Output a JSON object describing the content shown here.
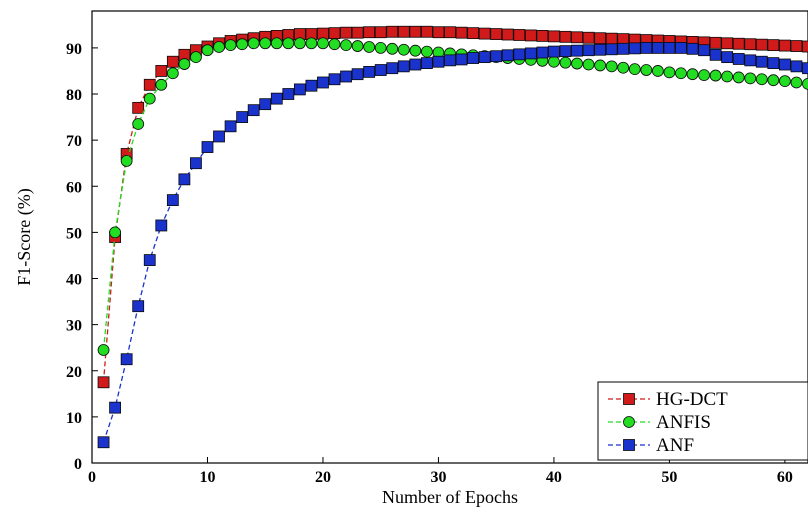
{
  "chart_data": {
    "type": "line",
    "title": "",
    "xlabel": "Number of Epochs",
    "ylabel": "F1-Score (%)",
    "xlim": [
      0,
      62
    ],
    "ylim": [
      0,
      98
    ],
    "xticks": [
      0,
      10,
      20,
      30,
      40,
      50,
      60
    ],
    "yticks": [
      0,
      10,
      20,
      30,
      40,
      50,
      60,
      70,
      80,
      90
    ],
    "grid": false,
    "legend_position": "bottom-right",
    "series": [
      {
        "name": "HG-DCT",
        "color": "#d11a1a",
        "marker": "square",
        "line": "dashed",
        "x": [
          1,
          2,
          3,
          4,
          5,
          6,
          7,
          8,
          9,
          10,
          11,
          12,
          13,
          14,
          15,
          16,
          17,
          18,
          19,
          20,
          21,
          22,
          23,
          24,
          25,
          26,
          27,
          28,
          29,
          30,
          31,
          32,
          33,
          34,
          35,
          36,
          37,
          38,
          39,
          40,
          41,
          42,
          43,
          44,
          45,
          46,
          47,
          48,
          49,
          50,
          51,
          52,
          53,
          54,
          55,
          56,
          57,
          58,
          59,
          60,
          61,
          62
        ],
        "y": [
          17.5,
          49,
          67,
          77,
          82,
          85,
          87,
          88.5,
          89.5,
          90.3,
          91,
          91.5,
          91.8,
          92.1,
          92.4,
          92.6,
          92.8,
          93,
          93,
          93.1,
          93.2,
          93.3,
          93.3,
          93.4,
          93.4,
          93.5,
          93.5,
          93.5,
          93.5,
          93.4,
          93.4,
          93.3,
          93.2,
          93.1,
          93,
          92.9,
          92.8,
          92.7,
          92.6,
          92.5,
          92.4,
          92.3,
          92.2,
          92.1,
          92,
          91.9,
          91.8,
          91.7,
          91.6,
          91.5,
          91.4,
          91.3,
          91.2,
          91.1,
          91,
          90.9,
          90.8,
          90.7,
          90.6,
          90.5,
          90.4,
          90.3
        ]
      },
      {
        "name": "ANFIS",
        "color": "#22dd22",
        "marker": "circle",
        "line": "dashed",
        "x": [
          1,
          2,
          3,
          4,
          5,
          6,
          7,
          8,
          9,
          10,
          11,
          12,
          13,
          14,
          15,
          16,
          17,
          18,
          19,
          20,
          21,
          22,
          23,
          24,
          25,
          26,
          27,
          28,
          29,
          30,
          31,
          32,
          33,
          34,
          35,
          36,
          37,
          38,
          39,
          40,
          41,
          42,
          43,
          44,
          45,
          46,
          47,
          48,
          49,
          50,
          51,
          52,
          53,
          54,
          55,
          56,
          57,
          58,
          59,
          60,
          61,
          62
        ],
        "y": [
          24.5,
          50,
          65.5,
          73.5,
          79,
          82,
          84.5,
          86.5,
          88,
          89.5,
          90.2,
          90.6,
          90.8,
          91,
          91,
          91,
          91,
          91,
          91,
          91,
          90.8,
          90.6,
          90.4,
          90.2,
          90,
          89.8,
          89.6,
          89.4,
          89.2,
          89,
          88.8,
          88.6,
          88.4,
          88.2,
          88,
          87.8,
          87.6,
          87.4,
          87.2,
          87,
          86.8,
          86.6,
          86.4,
          86.2,
          86,
          85.7,
          85.4,
          85.2,
          85,
          84.7,
          84.5,
          84.3,
          84.1,
          84,
          83.8,
          83.6,
          83.4,
          83.2,
          83,
          82.8,
          82.5,
          82.2
        ]
      },
      {
        "name": "ANF",
        "color": "#1a33cc",
        "marker": "square",
        "line": "dashed",
        "x": [
          1,
          2,
          3,
          4,
          5,
          6,
          7,
          8,
          9,
          10,
          11,
          12,
          13,
          14,
          15,
          16,
          17,
          18,
          19,
          20,
          21,
          22,
          23,
          24,
          25,
          26,
          27,
          28,
          29,
          30,
          31,
          32,
          33,
          34,
          35,
          36,
          37,
          38,
          39,
          40,
          41,
          42,
          43,
          44,
          45,
          46,
          47,
          48,
          49,
          50,
          51,
          52,
          53,
          54,
          55,
          56,
          57,
          58,
          59,
          60,
          61,
          62
        ],
        "y": [
          4.5,
          12,
          22.5,
          34,
          44,
          51.5,
          57,
          61.5,
          65,
          68.5,
          70.8,
          73,
          75,
          76.5,
          77.8,
          79,
          80,
          81,
          81.8,
          82.5,
          83.2,
          83.8,
          84.3,
          84.8,
          85.2,
          85.6,
          86,
          86.4,
          86.7,
          87,
          87.3,
          87.5,
          87.8,
          88,
          88.2,
          88.4,
          88.6,
          88.8,
          89,
          89.2,
          89.3,
          89.4,
          89.5,
          89.6,
          89.7,
          89.8,
          89.9,
          90,
          90,
          90,
          90,
          89.8,
          89.5,
          88.5,
          88,
          87.6,
          87.3,
          87,
          86.7,
          86.4,
          86,
          85.6
        ]
      }
    ]
  }
}
